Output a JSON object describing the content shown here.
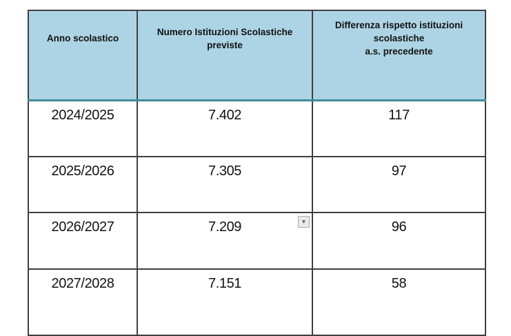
{
  "table": {
    "columns": [
      {
        "id": "anno",
        "lines": [
          "Anno scolastico"
        ]
      },
      {
        "id": "numero",
        "lines": [
          "Numero Istituzioni Scolastiche",
          "previste"
        ]
      },
      {
        "id": "differenza",
        "lines": [
          "Differenza rispetto istituzioni",
          "scolastiche",
          "a.s. precedente"
        ]
      }
    ],
    "rows": [
      {
        "anno": "2024/2025",
        "numero": "7.402",
        "differenza": "117"
      },
      {
        "anno": "2025/2026",
        "numero": "7.305",
        "differenza": "97"
      },
      {
        "anno": "2026/2027",
        "numero": "7.209",
        "differenza": "96"
      },
      {
        "anno": "2027/2028",
        "numero": "7.151",
        "differenza": "58"
      }
    ]
  },
  "icons": {
    "filter_dropdown": "▼"
  },
  "colors": {
    "header_bg": "#ADD4E4",
    "header_accent_border": "#3E8E99",
    "grid_border": "#3F3F3F",
    "outer_border": "#000000",
    "dropdown_bg": "#E9E9E9",
    "dropdown_border": "#ACACAC",
    "dropdown_glyph": "#595959"
  }
}
